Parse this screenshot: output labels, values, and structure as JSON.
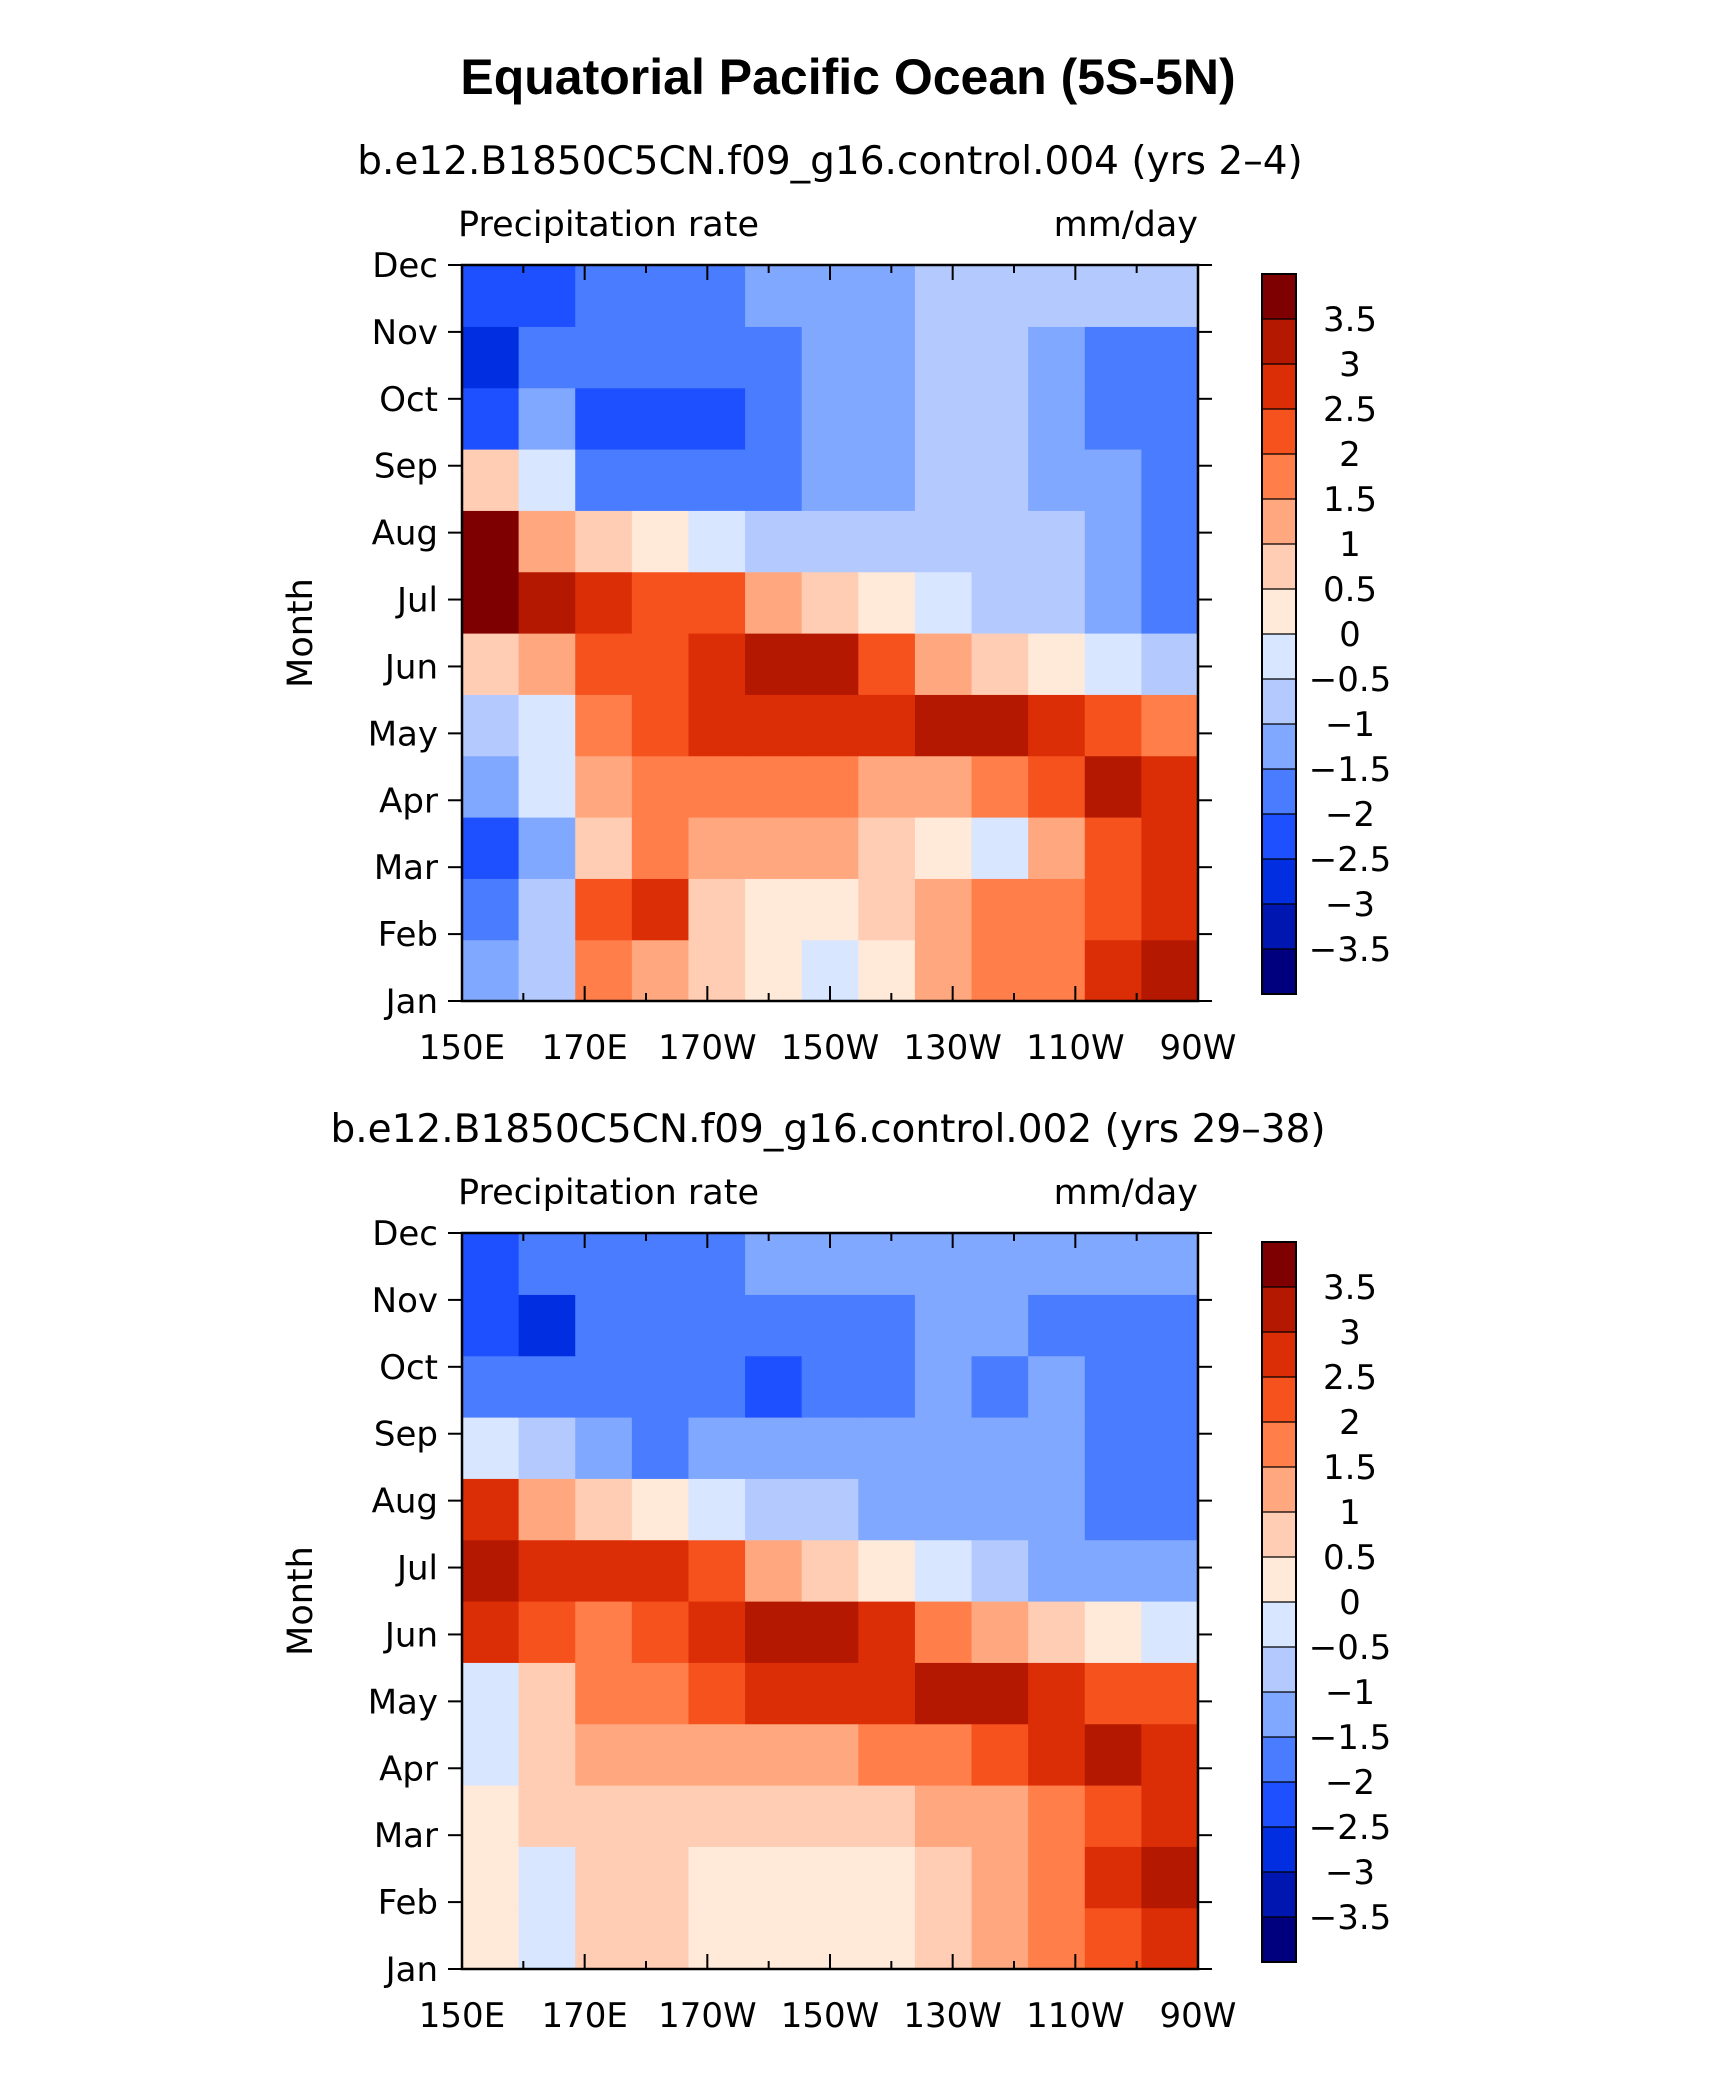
{
  "title": "Equatorial Pacific Ocean (5S-5N)",
  "chart_data": [
    {
      "type": "heatmap",
      "subtitle": "b.e12.B1850C5CN.f09_g16.control.004 (yrs 2–4)",
      "left_label": "Precipitation rate",
      "right_label": "mm/day",
      "ylabel": "Month",
      "xlabel": "",
      "x_tick_labels": [
        "150E",
        "170E",
        "170W",
        "150W",
        "130W",
        "110W",
        "90W"
      ],
      "y_tick_labels": [
        "Jan",
        "Feb",
        "Mar",
        "Apr",
        "May",
        "Jun",
        "Jul",
        "Aug",
        "Sep",
        "Oct",
        "Nov",
        "Dec"
      ],
      "xlim": [
        "150E",
        "90W"
      ],
      "colorbar_labels": [
        "3.5",
        "3",
        "2.5",
        "2",
        "1.5",
        "1",
        "0.5",
        "0",
        "−0.5",
        "−1",
        "−1.5",
        "−2",
        "−2.5",
        "−3",
        "−3.5"
      ],
      "x": [
        "150E",
        "160E",
        "170E",
        "180",
        "170W",
        "160W",
        "150W",
        "140W",
        "130W",
        "120W",
        "110W",
        "100W",
        "90W"
      ],
      "y": [
        "Jan",
        "Feb",
        "Mar",
        "Apr",
        "May",
        "Jun",
        "Jul",
        "Aug",
        "Sep",
        "Oct",
        "Nov",
        "Dec"
      ],
      "values": [
        [
          -1.5,
          -1.0,
          1.5,
          1.0,
          0.5,
          0.0,
          -0.5,
          0.3,
          1.0,
          1.5,
          1.5,
          2.5,
          3.0
        ],
        [
          -2.0,
          -1.0,
          2.0,
          2.5,
          0.5,
          0.0,
          0.2,
          0.8,
          1.0,
          1.5,
          1.5,
          2.0,
          2.5
        ],
        [
          -2.5,
          -1.5,
          0.5,
          1.5,
          1.0,
          1.0,
          1.0,
          0.5,
          0.0,
          -0.5,
          1.0,
          2.0,
          2.5
        ],
        [
          -1.5,
          -0.5,
          1.0,
          1.5,
          1.5,
          1.5,
          1.5,
          1.0,
          1.0,
          1.5,
          2.0,
          3.0,
          2.5
        ],
        [
          -1.0,
          -0.5,
          1.5,
          2.0,
          2.5,
          2.5,
          2.5,
          2.5,
          3.0,
          3.0,
          2.5,
          2.0,
          1.5
        ],
        [
          0.5,
          1.0,
          2.0,
          2.0,
          2.5,
          3.0,
          3.0,
          2.0,
          1.0,
          0.5,
          0.0,
          -0.5,
          -1.0
        ],
        [
          3.5,
          3.0,
          2.5,
          2.0,
          2.0,
          1.0,
          0.5,
          0.0,
          -0.5,
          -1.0,
          -1.0,
          -1.5,
          -2.0
        ],
        [
          3.5,
          1.0,
          0.5,
          0.0,
          -0.5,
          -1.0,
          -1.0,
          -1.0,
          -1.0,
          -1.0,
          -1.0,
          -1.5,
          -2.0
        ],
        [
          0.5,
          -0.5,
          -2.0,
          -2.0,
          -2.0,
          -2.0,
          -1.5,
          -1.5,
          -1.0,
          -1.0,
          -1.5,
          -1.5,
          -2.0
        ],
        [
          -2.5,
          -1.5,
          -2.5,
          -2.5,
          -2.5,
          -2.0,
          -1.5,
          -1.5,
          -1.0,
          -1.0,
          -1.5,
          -2.0,
          -2.0
        ],
        [
          -3.0,
          -2.0,
          -2.0,
          -2.0,
          -2.0,
          -2.0,
          -1.5,
          -1.5,
          -1.0,
          -1.0,
          -1.5,
          -2.0,
          -2.0
        ],
        [
          -2.5,
          -2.5,
          -2.0,
          -2.0,
          -2.0,
          -1.5,
          -1.5,
          -1.5,
          -1.0,
          -1.0,
          -1.0,
          -1.0,
          -1.0
        ]
      ]
    },
    {
      "type": "heatmap",
      "subtitle": "b.e12.B1850C5CN.f09_g16.control.002 (yrs 29–38)",
      "left_label": "Precipitation rate",
      "right_label": "mm/day",
      "ylabel": "Month",
      "xlabel": "",
      "x_tick_labels": [
        "150E",
        "170E",
        "170W",
        "150W",
        "130W",
        "110W",
        "90W"
      ],
      "y_tick_labels": [
        "Jan",
        "Feb",
        "Mar",
        "Apr",
        "May",
        "Jun",
        "Jul",
        "Aug",
        "Sep",
        "Oct",
        "Nov",
        "Dec"
      ],
      "xlim": [
        "150E",
        "90W"
      ],
      "colorbar_labels": [
        "3.5",
        "3",
        "2.5",
        "2",
        "1.5",
        "1",
        "0.5",
        "0",
        "−0.5",
        "−1",
        "−1.5",
        "−2",
        "−2.5",
        "−3",
        "−3.5"
      ],
      "x": [
        "150E",
        "160E",
        "170E",
        "180",
        "170W",
        "160W",
        "150W",
        "140W",
        "130W",
        "120W",
        "110W",
        "100W",
        "90W"
      ],
      "y": [
        "Jan",
        "Feb",
        "Mar",
        "Apr",
        "May",
        "Jun",
        "Jul",
        "Aug",
        "Sep",
        "Oct",
        "Nov",
        "Dec"
      ],
      "values": [
        [
          0.3,
          -0.5,
          0.5,
          0.5,
          0.2,
          0.0,
          0.0,
          0.2,
          0.5,
          1.0,
          1.5,
          2.0,
          2.5
        ],
        [
          0.3,
          -0.5,
          0.5,
          0.5,
          0.2,
          0.2,
          0.2,
          0.2,
          0.5,
          1.0,
          1.5,
          2.5,
          3.0
        ],
        [
          0.3,
          0.5,
          0.5,
          0.5,
          0.5,
          0.5,
          0.5,
          0.5,
          1.0,
          1.0,
          1.5,
          2.0,
          2.5
        ],
        [
          -0.5,
          0.5,
          1.0,
          1.0,
          1.0,
          1.0,
          1.0,
          1.5,
          1.5,
          2.0,
          2.5,
          3.0,
          2.5
        ],
        [
          -0.5,
          0.5,
          1.5,
          1.5,
          2.0,
          2.5,
          2.5,
          2.5,
          3.0,
          3.0,
          2.5,
          2.0,
          2.0
        ],
        [
          2.5,
          2.0,
          1.5,
          2.0,
          2.5,
          3.0,
          3.0,
          2.5,
          1.5,
          1.0,
          0.5,
          0.0,
          -0.5
        ],
        [
          3.0,
          2.5,
          2.5,
          2.5,
          2.0,
          1.0,
          0.5,
          0.0,
          -0.5,
          -1.0,
          -1.5,
          -1.5,
          -1.5
        ],
        [
          2.5,
          1.0,
          0.5,
          0.0,
          -0.5,
          -1.0,
          -1.0,
          -1.5,
          -1.5,
          -1.5,
          -1.5,
          -2.0,
          -2.0
        ],
        [
          -0.5,
          -1.0,
          -1.5,
          -2.0,
          -1.5,
          -1.5,
          -1.5,
          -1.5,
          -1.5,
          -1.5,
          -1.5,
          -2.0,
          -2.0
        ],
        [
          -2.0,
          -2.0,
          -2.0,
          -2.0,
          -2.0,
          -2.5,
          -2.0,
          -2.0,
          -1.5,
          -2.0,
          -1.5,
          -2.0,
          -2.0
        ],
        [
          -2.5,
          -3.0,
          -2.0,
          -2.0,
          -2.0,
          -2.0,
          -2.0,
          -2.0,
          -1.5,
          -1.5,
          -2.0,
          -2.0,
          -2.0
        ],
        [
          -2.5,
          -2.0,
          -2.0,
          -2.0,
          -2.0,
          -1.5,
          -1.5,
          -1.5,
          -1.5,
          -1.5,
          -1.5,
          -1.5,
          -1.5
        ]
      ]
    }
  ],
  "colors": {
    "levels": [
      "#00007f",
      "#0016b0",
      "#002ee0",
      "#1e50ff",
      "#4a7cff",
      "#80a8ff",
      "#b4caff",
      "#d8e6ff",
      "#ffe9d9",
      "#ffccb4",
      "#ffa880",
      "#ff7e4a",
      "#f6521e",
      "#dc2e06",
      "#b51800",
      "#7f0000"
    ]
  }
}
